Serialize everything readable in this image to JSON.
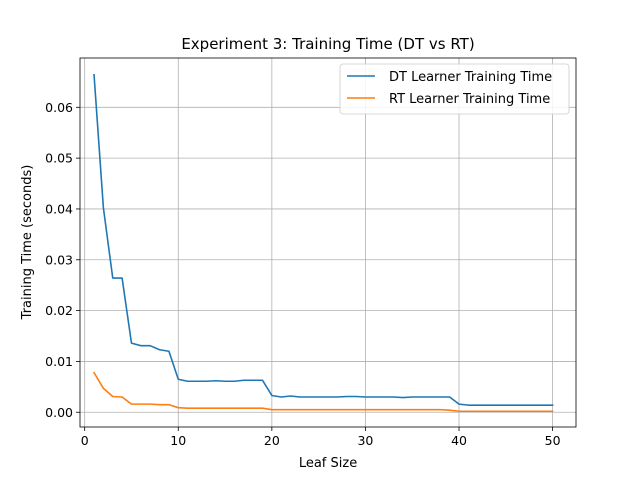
{
  "chart_data": {
    "type": "line",
    "title": "Experiment 3: Training Time (DT vs RT)",
    "xlabel": "Leaf Size",
    "ylabel": "Training Time (seconds)",
    "xlim": [
      -0.5,
      52.5
    ],
    "ylim": [
      -0.0029,
      0.0697
    ],
    "grid": true,
    "legend_position": "top-right",
    "x_ticks": [
      0,
      10,
      20,
      30,
      40,
      50
    ],
    "x_tick_labels": [
      "0",
      "10",
      "20",
      "30",
      "40",
      "50"
    ],
    "y_ticks": [
      0,
      0.01,
      0.02,
      0.03,
      0.04,
      0.05,
      0.06
    ],
    "y_tick_labels": [
      "0.00",
      "0.01",
      "0.02",
      "0.03",
      "0.04",
      "0.05",
      "0.06"
    ],
    "x": [
      1,
      2,
      3,
      4,
      5,
      6,
      7,
      8,
      9,
      10,
      11,
      12,
      13,
      14,
      15,
      16,
      17,
      18,
      19,
      20,
      21,
      22,
      23,
      24,
      25,
      26,
      27,
      28,
      29,
      30,
      31,
      32,
      33,
      34,
      35,
      36,
      37,
      38,
      39,
      40,
      41,
      42,
      43,
      44,
      45,
      46,
      47,
      48,
      49,
      50
    ],
    "series": [
      {
        "name": "DT Learner Training Time",
        "color": "#1f77b4",
        "values": [
          0.0664,
          0.0402,
          0.0264,
          0.0264,
          0.0136,
          0.0131,
          0.0131,
          0.0123,
          0.012,
          0.0065,
          0.0061,
          0.0061,
          0.0061,
          0.0062,
          0.0061,
          0.0061,
          0.0063,
          0.0063,
          0.0063,
          0.0033,
          0.003,
          0.0032,
          0.003,
          0.003,
          0.003,
          0.003,
          0.003,
          0.0031,
          0.0031,
          0.003,
          0.003,
          0.003,
          0.003,
          0.0029,
          0.003,
          0.003,
          0.003,
          0.003,
          0.003,
          0.0016,
          0.0014,
          0.0014,
          0.0014,
          0.0014,
          0.0014,
          0.0014,
          0.0014,
          0.0014,
          0.0014,
          0.0014
        ]
      },
      {
        "name": "RT Learner Training Time",
        "color": "#ff7f0e",
        "values": [
          0.0078,
          0.0047,
          0.0031,
          0.003,
          0.0016,
          0.0016,
          0.0016,
          0.0015,
          0.0015,
          0.0009,
          0.0008,
          0.0008,
          0.0008,
          0.0008,
          0.0008,
          0.0008,
          0.0008,
          0.0008,
          0.0008,
          0.0005,
          0.0005,
          0.0005,
          0.0005,
          0.0005,
          0.0005,
          0.0005,
          0.0005,
          0.0005,
          0.0005,
          0.0005,
          0.0005,
          0.0005,
          0.0005,
          0.0005,
          0.0005,
          0.0005,
          0.0005,
          0.0005,
          0.0004,
          0.0002,
          0.0002,
          0.0002,
          0.0002,
          0.0002,
          0.0002,
          0.0002,
          0.0002,
          0.0002,
          0.0002,
          0.0002
        ]
      }
    ]
  }
}
